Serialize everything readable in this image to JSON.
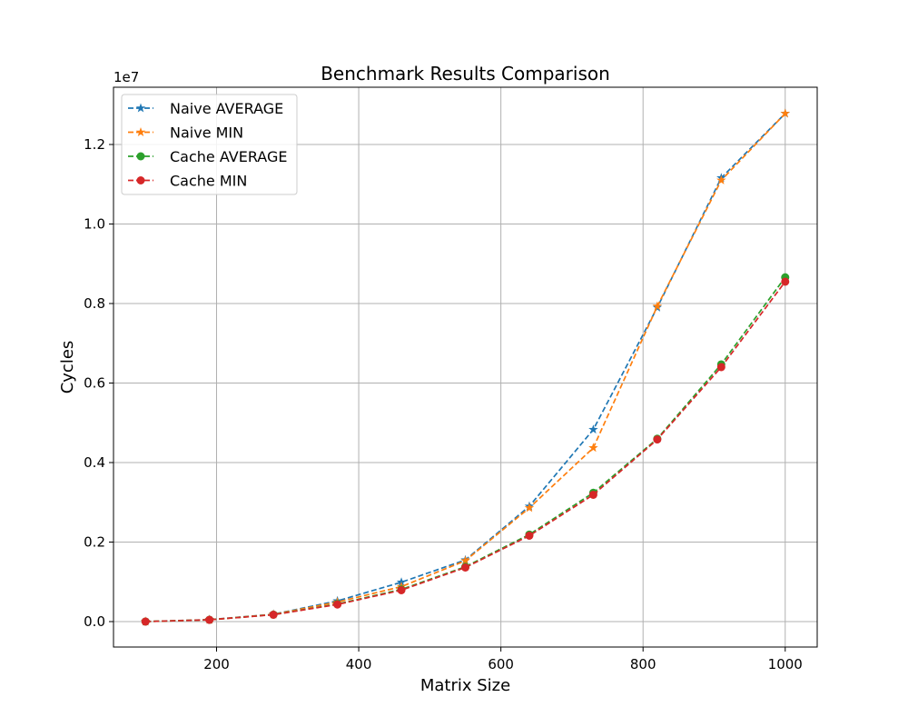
{
  "chart_data": {
    "type": "line",
    "title": "Benchmark Results Comparison",
    "xlabel": "Matrix Size",
    "ylabel": "Cycles",
    "y_offset_text": "1e7",
    "y_scale": 10000000,
    "xlim": [
      55,
      1045
    ],
    "ylim": [
      -0.064,
      1.344
    ],
    "x_ticks": [
      200,
      400,
      600,
      800,
      1000
    ],
    "x_tick_labels": [
      "200",
      "400",
      "600",
      "800",
      "1000"
    ],
    "y_ticks": [
      0.0,
      0.2,
      0.4,
      0.6,
      0.8,
      1.0,
      1.2
    ],
    "y_tick_labels": [
      "0.0",
      "0.2",
      "0.4",
      "0.6",
      "0.8",
      "1.0",
      "1.2"
    ],
    "grid": true,
    "legend_position": "top-left",
    "x": [
      100,
      190,
      280,
      370,
      460,
      550,
      640,
      730,
      820,
      910,
      1000
    ],
    "series": [
      {
        "name": "Naive AVERAGE",
        "color": "#1f77b4",
        "marker": "star",
        "linestyle": "dashed",
        "values": [
          0.0001,
          0.0048,
          0.0185,
          0.052,
          0.099,
          0.155,
          0.29,
          0.483,
          0.79,
          1.116,
          1.278
        ]
      },
      {
        "name": "Naive MIN",
        "color": "#ff7f0e",
        "marker": "star",
        "linestyle": "dashed",
        "values": [
          0.0001,
          0.0046,
          0.018,
          0.049,
          0.088,
          0.153,
          0.286,
          0.437,
          0.793,
          1.11,
          1.278
        ]
      },
      {
        "name": "Cache AVERAGE",
        "color": "#2ca02c",
        "marker": "circle",
        "linestyle": "dashed",
        "values": [
          0.0001,
          0.0045,
          0.0175,
          0.044,
          0.081,
          0.138,
          0.219,
          0.324,
          0.46,
          0.647,
          0.866
        ]
      },
      {
        "name": "Cache MIN",
        "color": "#d62728",
        "marker": "circle",
        "linestyle": "dashed",
        "values": [
          0.0001,
          0.0044,
          0.0172,
          0.043,
          0.079,
          0.136,
          0.216,
          0.319,
          0.458,
          0.64,
          0.855
        ]
      }
    ]
  }
}
